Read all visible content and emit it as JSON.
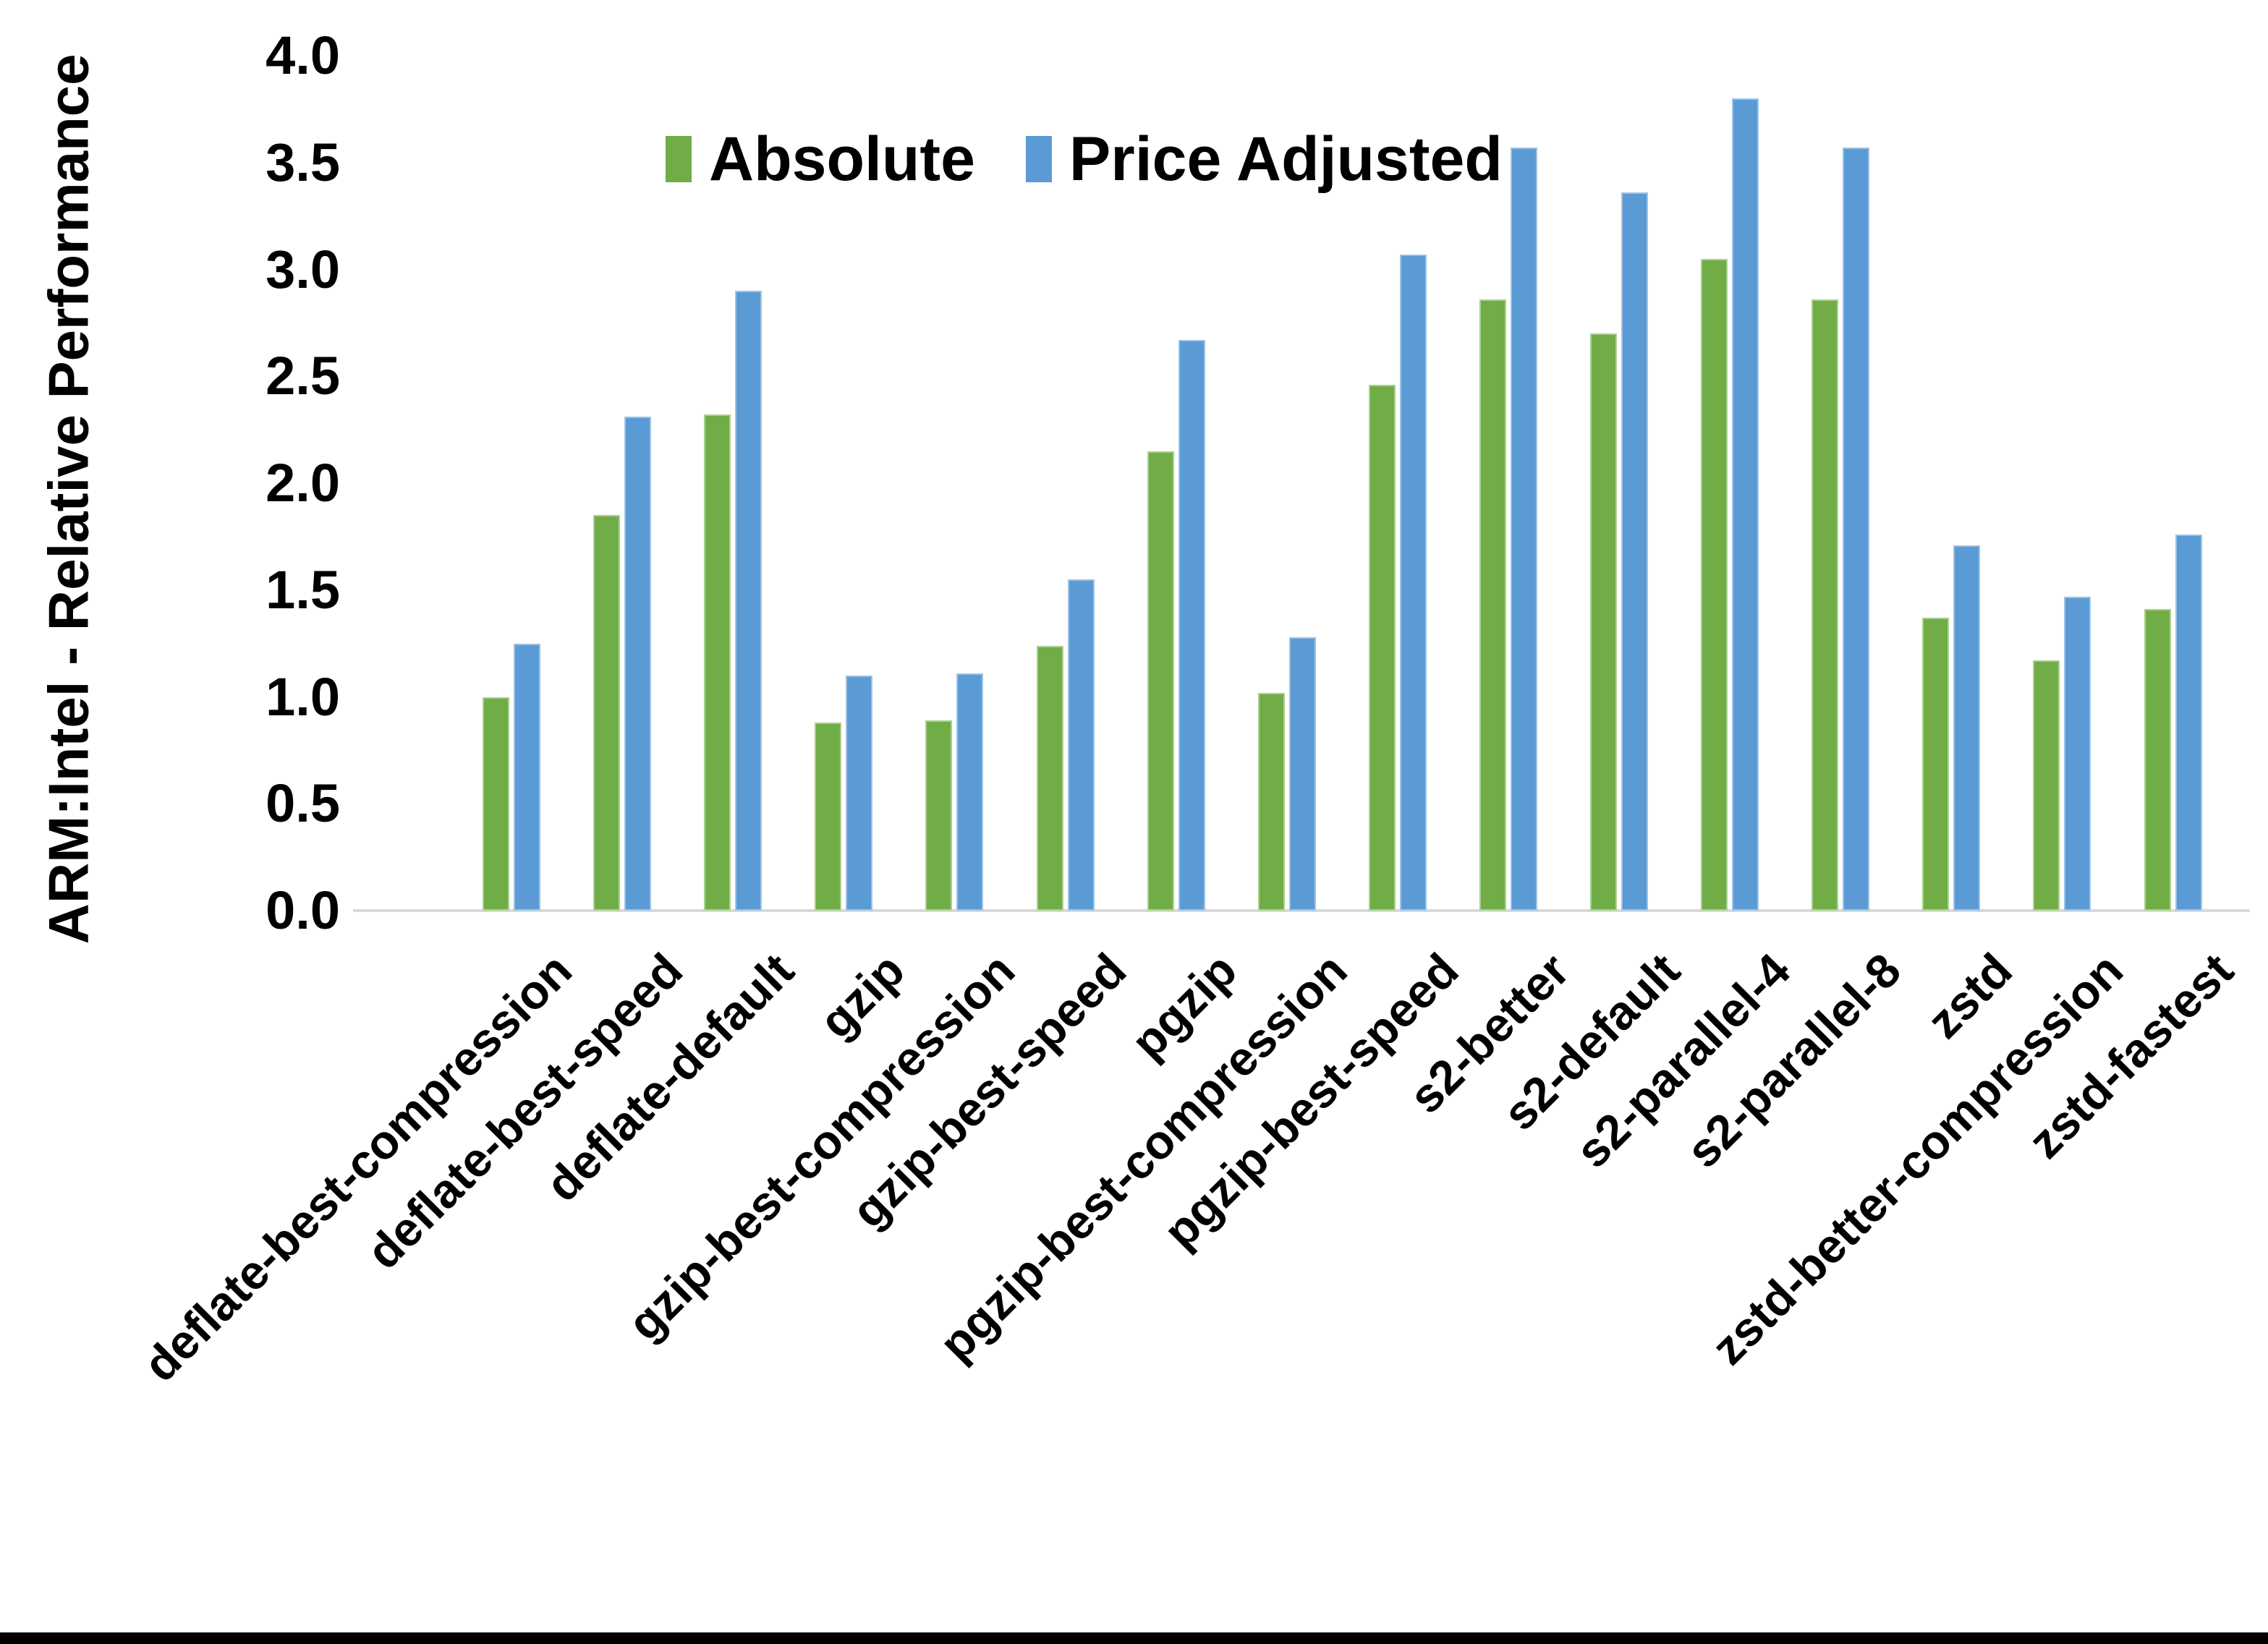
{
  "chart_data": {
    "type": "bar",
    "title": "",
    "xlabel": "",
    "ylabel": "ARM:Intel - Relative Performance",
    "ylim": [
      0.0,
      4.0
    ],
    "yticks": [
      "4.0",
      "3.5",
      "3.0",
      "2.5",
      "2.0",
      "1.5",
      "1.0",
      "0.5",
      "0.0"
    ],
    "grid": false,
    "legend_position": "top",
    "axis_line_color": "#D9D9D9",
    "categories": [
      "deflate-best-compression",
      "deflate-best-speed",
      "deflate-default",
      "gzip",
      "gzip-best-compression",
      "gzip-best-speed",
      "pgzip",
      "pgzip-best-compression",
      "pgzip-best-speed",
      "s2-better",
      "s2-default",
      "s2-parallel-4",
      "s2-parallel-8",
      "zstd",
      "zstd-better-compression",
      "zstd-fastest"
    ],
    "series": [
      {
        "name": "Absolute",
        "color": "#70AD47",
        "values": [
          1.0,
          1.85,
          2.32,
          0.88,
          0.89,
          1.24,
          2.15,
          1.02,
          2.46,
          2.86,
          2.7,
          3.05,
          2.86,
          1.37,
          1.17,
          1.41
        ]
      },
      {
        "name": "Price Adjusted",
        "color": "#5B9BD5",
        "values": [
          1.25,
          2.31,
          2.9,
          1.1,
          1.11,
          1.55,
          2.67,
          1.28,
          3.07,
          3.57,
          3.36,
          3.8,
          3.57,
          1.71,
          1.47,
          1.76
        ]
      }
    ]
  }
}
